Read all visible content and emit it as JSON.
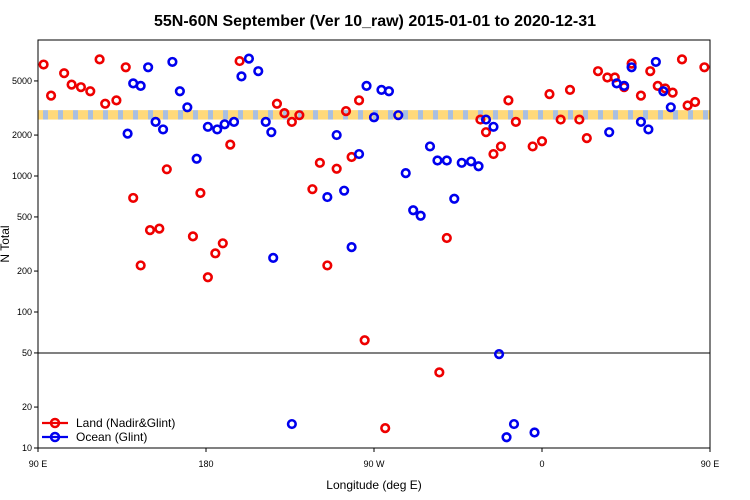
{
  "chart_data": {
    "type": "scatter",
    "title": "55N-60N September (Ver 10_raw)   2015-01-01 to 2020-12-31",
    "xlabel": "Longitude (deg E)",
    "ylabel": "N Total",
    "xlim": [
      90,
      450
    ],
    "ylim": [
      10,
      10000
    ],
    "yscale": "log",
    "x_ticks": [
      {
        "v": 90,
        "label": "90 E"
      },
      {
        "v": 180,
        "label": "180"
      },
      {
        "v": 270,
        "label": "90 W"
      },
      {
        "v": 360,
        "label": "0"
      },
      {
        "v": 450,
        "label": "90 E"
      },
      {
        "v": 540,
        "label": "180"
      }
    ],
    "y_ticks": [
      10,
      20,
      50,
      100,
      200,
      500,
      1000,
      2000,
      5000
    ],
    "hline": 50,
    "band": {
      "ymin": 2600,
      "ymax": 3050,
      "colors": [
        "#ffd97a",
        "#a9bfe0"
      ]
    },
    "legend": {
      "position": "bottom-left"
    },
    "series": [
      {
        "name": "Land (Nadir&Glint)",
        "color": "#ee0000",
        "points": [
          [
            93,
            6600
          ],
          [
            97,
            3900
          ],
          [
            104,
            5700
          ],
          [
            108,
            4700
          ],
          [
            113,
            4500
          ],
          [
            118,
            4200
          ],
          [
            123,
            7200
          ],
          [
            126,
            3400
          ],
          [
            132,
            3600
          ],
          [
            137,
            6300
          ],
          [
            141,
            690
          ],
          [
            145,
            220
          ],
          [
            150,
            400
          ],
          [
            155,
            410
          ],
          [
            159,
            1120
          ],
          [
            218,
            3400
          ],
          [
            222,
            2900
          ],
          [
            226,
            2500
          ],
          [
            230,
            2800
          ],
          [
            237,
            800
          ],
          [
            241,
            1250
          ],
          [
            245,
            220
          ],
          [
            250,
            1130
          ],
          [
            255,
            3000
          ],
          [
            258,
            1380
          ],
          [
            262,
            3600
          ],
          [
            265,
            62
          ],
          [
            276,
            14
          ],
          [
            327,
            2600
          ],
          [
            330,
            2100
          ],
          [
            334,
            1450
          ],
          [
            338,
            1650
          ],
          [
            342,
            3600
          ],
          [
            346,
            2500
          ],
          [
            355,
            1650
          ],
          [
            360,
            1800
          ],
          [
            364,
            4000
          ],
          [
            370,
            2600
          ],
          [
            375,
            4300
          ],
          [
            380,
            2600
          ],
          [
            384,
            1900
          ],
          [
            390,
            5900
          ],
          [
            395,
            5300
          ],
          [
            399,
            5300
          ],
          [
            404,
            4500
          ],
          [
            408,
            6700
          ],
          [
            413,
            3900
          ],
          [
            418,
            5900
          ],
          [
            422,
            4600
          ],
          [
            426,
            4400
          ],
          [
            430,
            4100
          ],
          [
            435,
            7200
          ],
          [
            438,
            3300
          ],
          [
            442,
            3500
          ],
          [
            447,
            6300
          ],
          [
            452,
            690
          ],
          [
            456,
            220
          ],
          [
            460,
            400
          ],
          [
            465,
            410
          ],
          [
            470,
            1120
          ],
          [
            173,
            360
          ],
          [
            177,
            750
          ],
          [
            181,
            180
          ],
          [
            185,
            270
          ],
          [
            189,
            320
          ],
          [
            193,
            1700
          ],
          [
            198,
            7000
          ],
          [
            305,
            36
          ],
          [
            309,
            350
          ]
        ]
      },
      {
        "name": "Ocean (Glint)",
        "color": "#0000ee",
        "points": [
          [
            138,
            2050
          ],
          [
            141,
            4800
          ],
          [
            145,
            4600
          ],
          [
            149,
            6300
          ],
          [
            153,
            2500
          ],
          [
            157,
            2200
          ],
          [
            162,
            6900
          ],
          [
            166,
            4200
          ],
          [
            170,
            3200
          ],
          [
            175,
            1340
          ],
          [
            181,
            2300
          ],
          [
            186,
            2200
          ],
          [
            190,
            2400
          ],
          [
            195,
            2500
          ],
          [
            199,
            5400
          ],
          [
            203,
            7300
          ],
          [
            208,
            5900
          ],
          [
            212,
            2500
          ],
          [
            216,
            250
          ],
          [
            250,
            2000
          ],
          [
            254,
            780
          ],
          [
            258,
            300
          ],
          [
            262,
            1450
          ],
          [
            266,
            4600
          ],
          [
            270,
            2700
          ],
          [
            274,
            4300
          ],
          [
            278,
            4200
          ],
          [
            283,
            2800
          ],
          [
            287,
            1050
          ],
          [
            291,
            560
          ],
          [
            295,
            510
          ],
          [
            300,
            1650
          ],
          [
            304,
            1300
          ],
          [
            309,
            1300
          ],
          [
            313,
            680
          ],
          [
            317,
            1250
          ],
          [
            322,
            1280
          ],
          [
            326,
            1180
          ],
          [
            330,
            2600
          ],
          [
            334,
            2300
          ],
          [
            337,
            49
          ],
          [
            341,
            12
          ],
          [
            345,
            15
          ],
          [
            356,
            13
          ],
          [
            396,
            2100
          ],
          [
            400,
            4800
          ],
          [
            404,
            4600
          ],
          [
            408,
            6300
          ],
          [
            413,
            2500
          ],
          [
            417,
            2200
          ],
          [
            421,
            6900
          ],
          [
            425,
            4200
          ],
          [
            429,
            3200
          ],
          [
            215,
            2100
          ],
          [
            226,
            15
          ],
          [
            245,
            700
          ]
        ]
      }
    ]
  }
}
